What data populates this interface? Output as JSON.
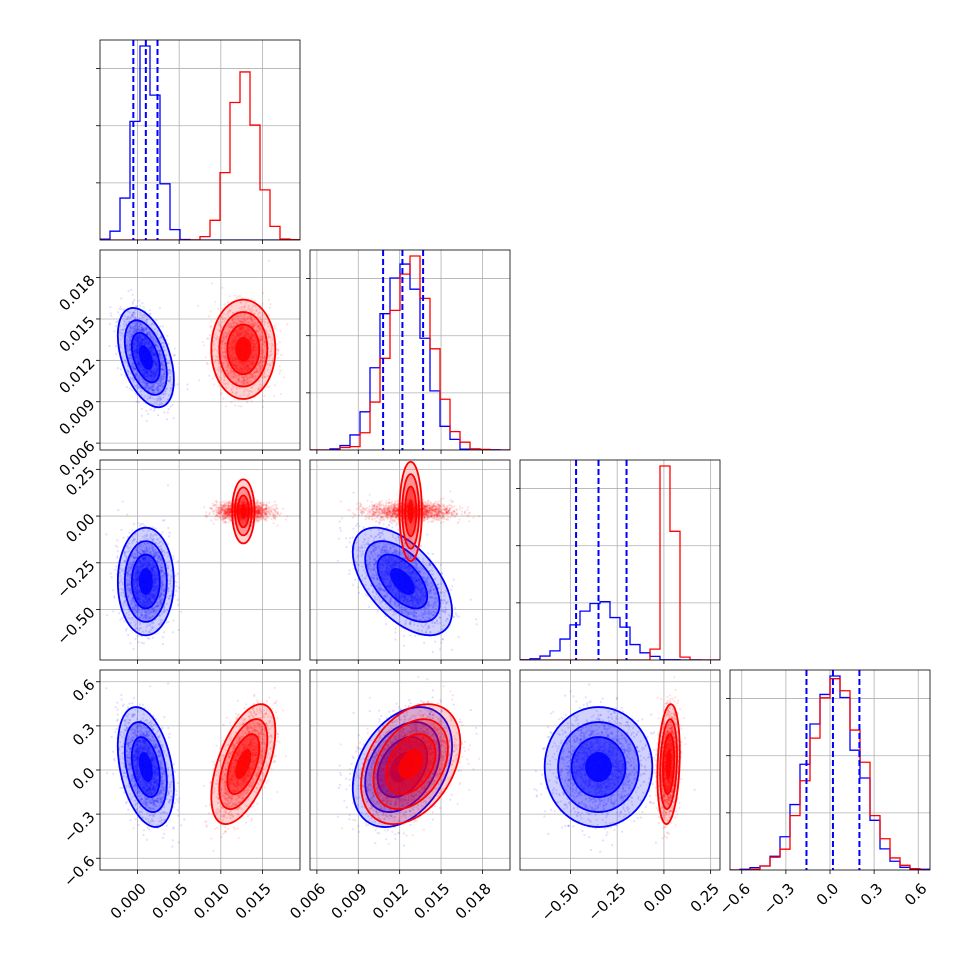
{
  "chart_data": {
    "type": "corner",
    "title": "",
    "colors": {
      "blue": "#0000ff",
      "red": "#ff0000"
    },
    "grid": true,
    "parameters": [
      {
        "index": 0,
        "range": [
          -0.0045,
          0.0195
        ],
        "ticks": [
          0.0,
          0.005,
          0.01,
          0.015
        ],
        "tick_labels": [
          "0.000",
          "0.005",
          "0.010",
          "0.015"
        ]
      },
      {
        "index": 1,
        "range": [
          0.0055,
          0.02
        ],
        "ticks": [
          0.006,
          0.009,
          0.012,
          0.015,
          0.018
        ],
        "tick_labels": [
          "0.006",
          "0.009",
          "0.012",
          "0.015",
          "0.018"
        ]
      },
      {
        "index": 2,
        "range": [
          -0.77,
          0.3
        ],
        "ticks": [
          -0.5,
          -0.25,
          0.0,
          0.25
        ],
        "tick_labels": [
          "−0.50",
          "−0.25",
          "0.00",
          "0.25"
        ]
      },
      {
        "index": 3,
        "range": [
          -0.68,
          0.68
        ],
        "ticks": [
          -0.6,
          -0.3,
          0.0,
          0.3,
          0.6
        ],
        "tick_labels": [
          "−0.6",
          "−0.3",
          "0.0",
          "0.3",
          "0.6"
        ]
      }
    ],
    "series": [
      {
        "color": "blue",
        "means": [
          0.001,
          0.0122,
          -0.35,
          0.02
        ],
        "sigmas": [
          0.0014,
          0.0015,
          0.12,
          0.17
        ],
        "correlations": [
          [
            0,
            1,
            -0.45
          ],
          [
            0,
            2,
            0.0
          ],
          [
            0,
            3,
            -0.35
          ],
          [
            1,
            2,
            -0.55
          ],
          [
            1,
            3,
            0.35
          ],
          [
            2,
            3,
            0.0
          ]
        ],
        "quantiles": [
          [
            -0.0005,
            0.001,
            0.0024
          ],
          [
            0.0108,
            0.0122,
            0.0137
          ],
          [
            -0.47,
            -0.35,
            -0.2
          ],
          [
            -0.16,
            0.02,
            0.2
          ]
        ]
      },
      {
        "color": "red",
        "means": [
          0.0127,
          0.0128,
          0.025,
          0.04
        ],
        "sigmas": [
          0.0016,
          0.0015,
          0.025,
          0.17
        ],
        "correlations": [
          [
            0,
            1,
            0.0
          ],
          [
            0,
            2,
            0.0
          ],
          [
            0,
            3,
            0.55
          ],
          [
            1,
            2,
            0.0
          ],
          [
            1,
            3,
            0.35
          ],
          [
            2,
            3,
            0.2
          ]
        ],
        "quantiles": []
      }
    ]
  }
}
